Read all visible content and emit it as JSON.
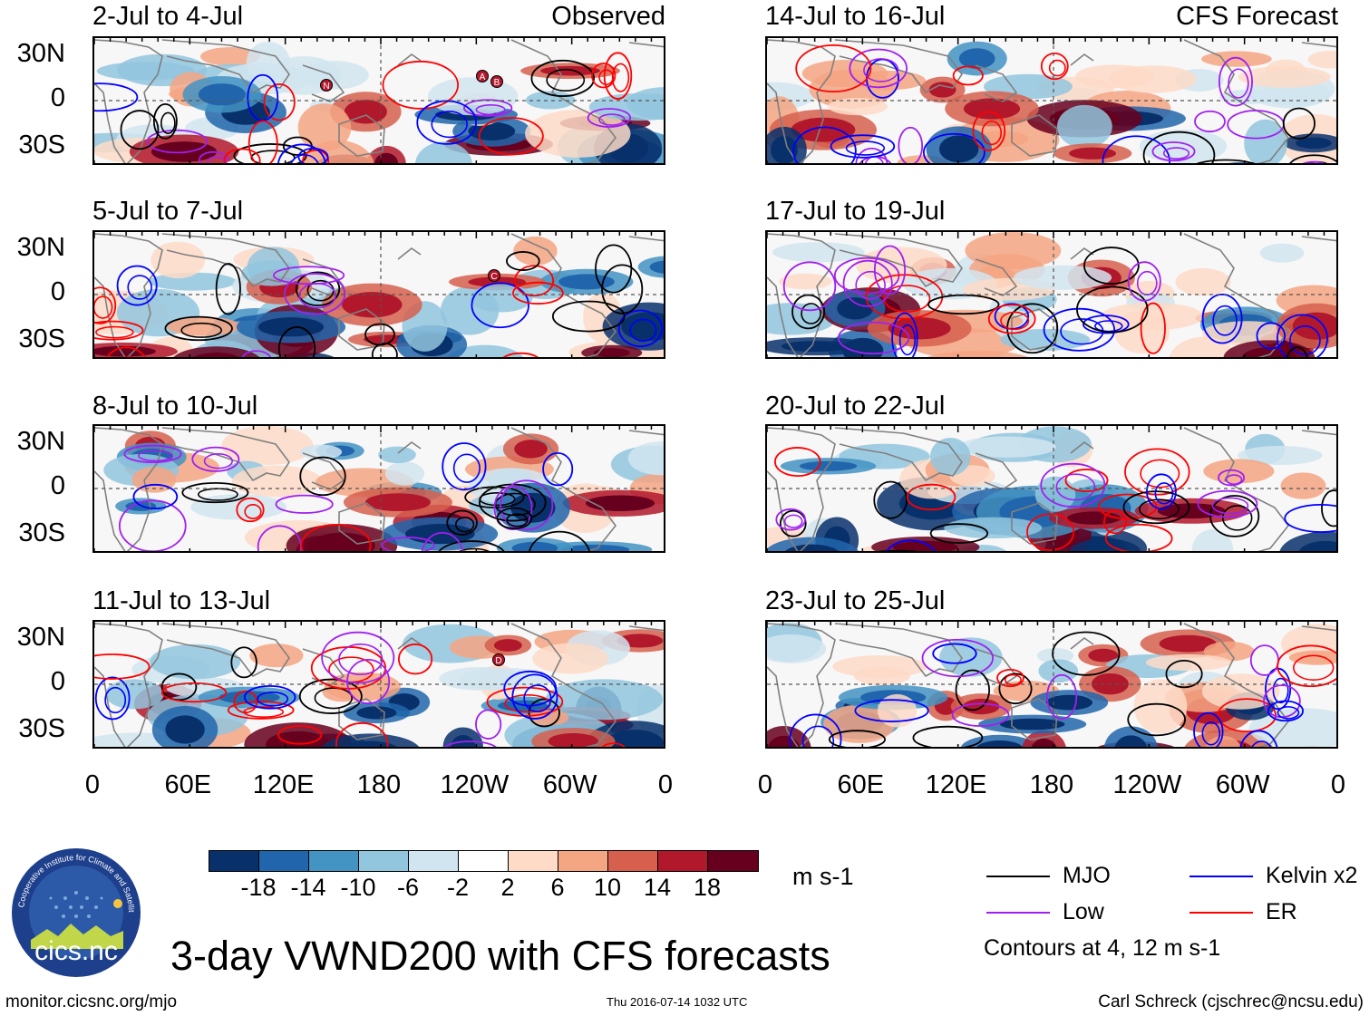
{
  "panels_left": [
    {
      "title": "2-Jul to 4-Jul",
      "label": "Observed"
    },
    {
      "title": "5-Jul to 7-Jul",
      "label": ""
    },
    {
      "title": "8-Jul to 10-Jul",
      "label": ""
    },
    {
      "title": "11-Jul to 13-Jul",
      "label": ""
    }
  ],
  "panels_right": [
    {
      "title": "14-Jul to 16-Jul",
      "label": "CFS Forecast"
    },
    {
      "title": "17-Jul to 19-Jul",
      "label": ""
    },
    {
      "title": "20-Jul to 22-Jul",
      "label": ""
    },
    {
      "title": "23-Jul to 25-Jul",
      "label": ""
    }
  ],
  "lat_labels": [
    "30N",
    "0",
    "30S"
  ],
  "lon_labels": [
    "0",
    "60E",
    "120E",
    "180",
    "120W",
    "60W",
    "0"
  ],
  "colorbar": {
    "colors": [
      "#08306b",
      "#2166ac",
      "#4393c3",
      "#92c5de",
      "#d1e5f0",
      "#ffffff",
      "#fddbc7",
      "#f4a582",
      "#d6604d",
      "#b2182b",
      "#67001f"
    ],
    "ticks": [
      "-18",
      "-14",
      "-10",
      "-6",
      "-2",
      "2",
      "6",
      "10",
      "14",
      "18"
    ],
    "units": "m s-1"
  },
  "legend": {
    "items": [
      {
        "name": "MJO",
        "color": "#000000"
      },
      {
        "name": "Kelvin x2",
        "color": "#0000ff"
      },
      {
        "name": "Low",
        "color": "#a020f0"
      },
      {
        "name": "ER",
        "color": "#ff0000"
      }
    ],
    "note": "Contours at 4, 12 m s-1"
  },
  "main_title": "3-day VWND200 with CFS forecasts",
  "logo_text": "cics.nc",
  "logo_ring_text": "Cooperative Institute for Climate and Satellites",
  "footer": {
    "url": "monitor.cicsnc.org/mjo",
    "timestamp": "Thu 2016-07-14 1032 UTC",
    "author": "Carl Schreck (cjschrec@ncsu.edu)"
  },
  "storm_markers": {
    "p0": [
      "N",
      "A",
      "B"
    ],
    "p1": [
      "C"
    ],
    "p3": [
      "D"
    ]
  }
}
